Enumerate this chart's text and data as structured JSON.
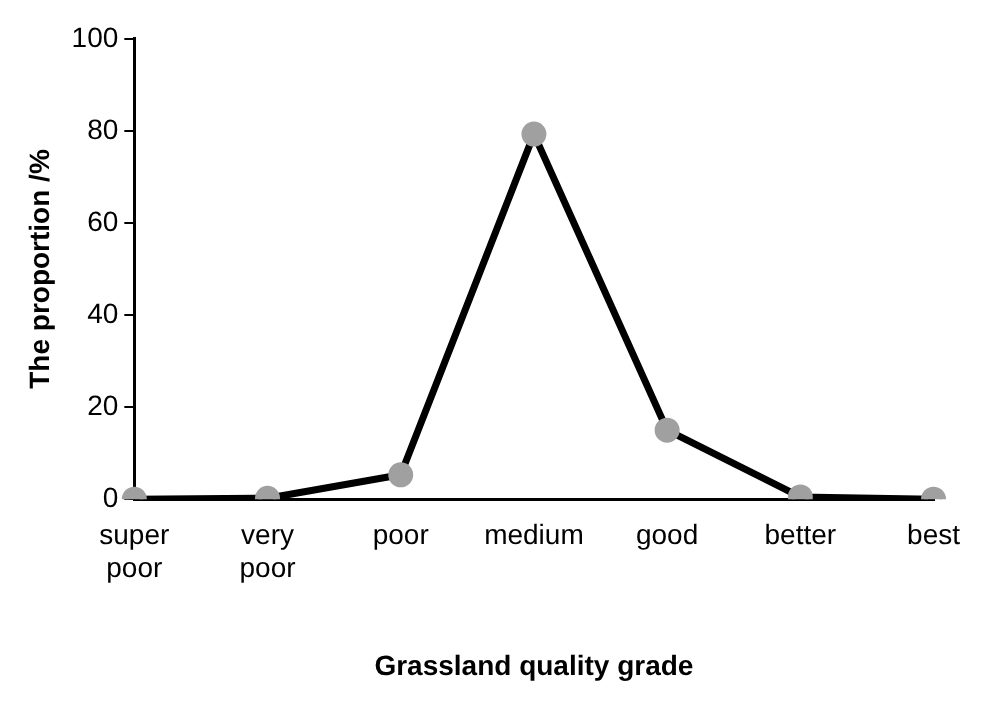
{
  "chart_data": {
    "type": "line",
    "xlabel": "Grassland quality grade",
    "ylabel": "The proportion /%",
    "categories": [
      "super poor",
      "very poor",
      "poor",
      "medium",
      "good",
      "better",
      "best"
    ],
    "series": [
      {
        "color": "#000000",
        "values": [
          0,
          0.2,
          5.3,
          79.3,
          15,
          0.5,
          0
        ]
      }
    ],
    "ylim": [
      0,
      100
    ],
    "yticks": [
      0,
      20,
      40,
      60,
      80,
      100
    ],
    "grid": false,
    "legend": false,
    "marker": "circle",
    "line_style": "solid"
  }
}
